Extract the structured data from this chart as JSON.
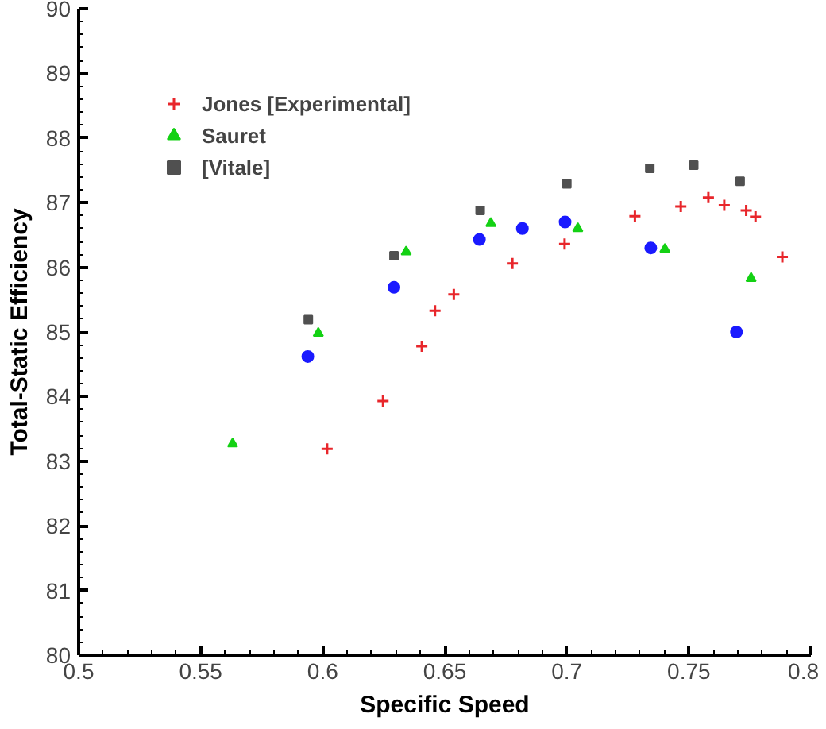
{
  "chart_data": {
    "type": "scatter",
    "xlabel": "Specific Speed",
    "ylabel": "Total-Static Efficiency",
    "xlim": [
      0.5,
      0.8
    ],
    "xticks": [
      0.5,
      0.55,
      0.6,
      0.65,
      0.7,
      0.75,
      0.8
    ],
    "ylim": [
      80,
      90
    ],
    "yticks": [
      80,
      81,
      82,
      83,
      84,
      85,
      86,
      87,
      88,
      89,
      90
    ],
    "grid": false,
    "legend": "top left",
    "series": [
      {
        "name": "Jones [Experimental]",
        "color": "#e8262b",
        "marker": "cross",
        "x": [
          0.6018,
          0.6247,
          0.6406,
          0.646,
          0.6537,
          0.6777,
          0.6991,
          0.7279,
          0.7467,
          0.758,
          0.7645,
          0.7735,
          0.7773,
          0.7883
        ],
        "values": [
          83.19,
          83.93,
          84.78,
          85.33,
          85.58,
          86.06,
          86.36,
          86.79,
          86.94,
          87.08,
          86.96,
          86.88,
          86.78,
          86.16
        ]
      },
      {
        "name": "Sauret",
        "color": "#14d114",
        "marker": "triangle",
        "x": [
          0.5631,
          0.5982,
          0.6342,
          0.6689,
          0.7045,
          0.7402,
          0.7755
        ],
        "values": [
          83.27,
          84.98,
          86.24,
          86.68,
          86.6,
          86.28,
          85.83
        ]
      },
      {
        "color": "#1a1aff",
        "marker": "circle",
        "x": [
          0.5939,
          0.6292,
          0.6642,
          0.6818,
          0.6993,
          0.7344,
          0.7695
        ],
        "values": [
          84.62,
          85.69,
          86.43,
          86.6,
          86.7,
          86.3,
          85.0
        ]
      },
      {
        "name": "[Vitale]",
        "color": "#505050",
        "marker": "square",
        "x": [
          0.5941,
          0.6292,
          0.6645,
          0.7,
          0.734,
          0.752,
          0.771
        ],
        "values": [
          85.19,
          86.18,
          86.88,
          87.29,
          87.53,
          87.58,
          87.33
        ]
      }
    ]
  }
}
